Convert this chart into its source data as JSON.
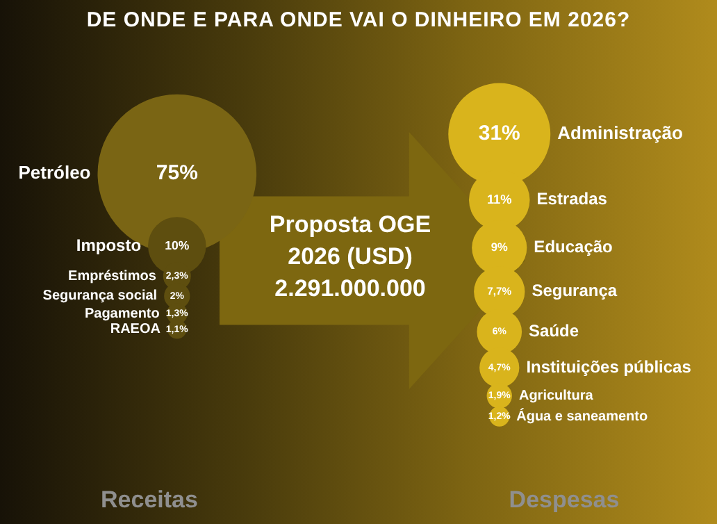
{
  "chart_data": [
    {
      "type": "other",
      "title": "DE ONDE E PARA ONDE VAI O DINHEIRO EM 2026?",
      "xlabel": "Receitas",
      "annotations": [
        "Proposta OGE",
        "2026 (USD)",
        "2.291.000.000"
      ],
      "categories": [
        "Petróleo",
        "Imposto",
        "Empréstimos",
        "Segurança social",
        "Pagamento",
        "RAEOA"
      ],
      "values": [
        75,
        10,
        2.3,
        2,
        1.3,
        1.1
      ],
      "value_labels": [
        "75%",
        "10%",
        "2,3%",
        "2%",
        "1,3%",
        "1,1%"
      ],
      "colors": [
        "#7a6514",
        "#5e4e0f",
        "#5e4e0f",
        "#5e4e0f",
        "#5e4e0f",
        "#5e4e0f"
      ]
    },
    {
      "type": "other",
      "xlabel": "Despesas",
      "categories": [
        "Administração",
        "Estradas",
        "Educação",
        "Segurança",
        "Saúde",
        "Instituições públicas",
        "Agricultura",
        "Água e saneamento"
      ],
      "values": [
        31,
        11,
        9,
        7.7,
        6,
        4.7,
        1.9,
        1.2
      ],
      "value_labels": [
        "31%",
        "11%",
        "9%",
        "7,7%",
        "6%",
        "4,7%",
        "1,9%",
        "1,2%"
      ],
      "colors": [
        "#d9b41c",
        "#d9b41c",
        "#d9b41c",
        "#d9b41c",
        "#d9b41c",
        "#d9b41c",
        "#d9b41c",
        "#d9b41c"
      ]
    }
  ]
}
